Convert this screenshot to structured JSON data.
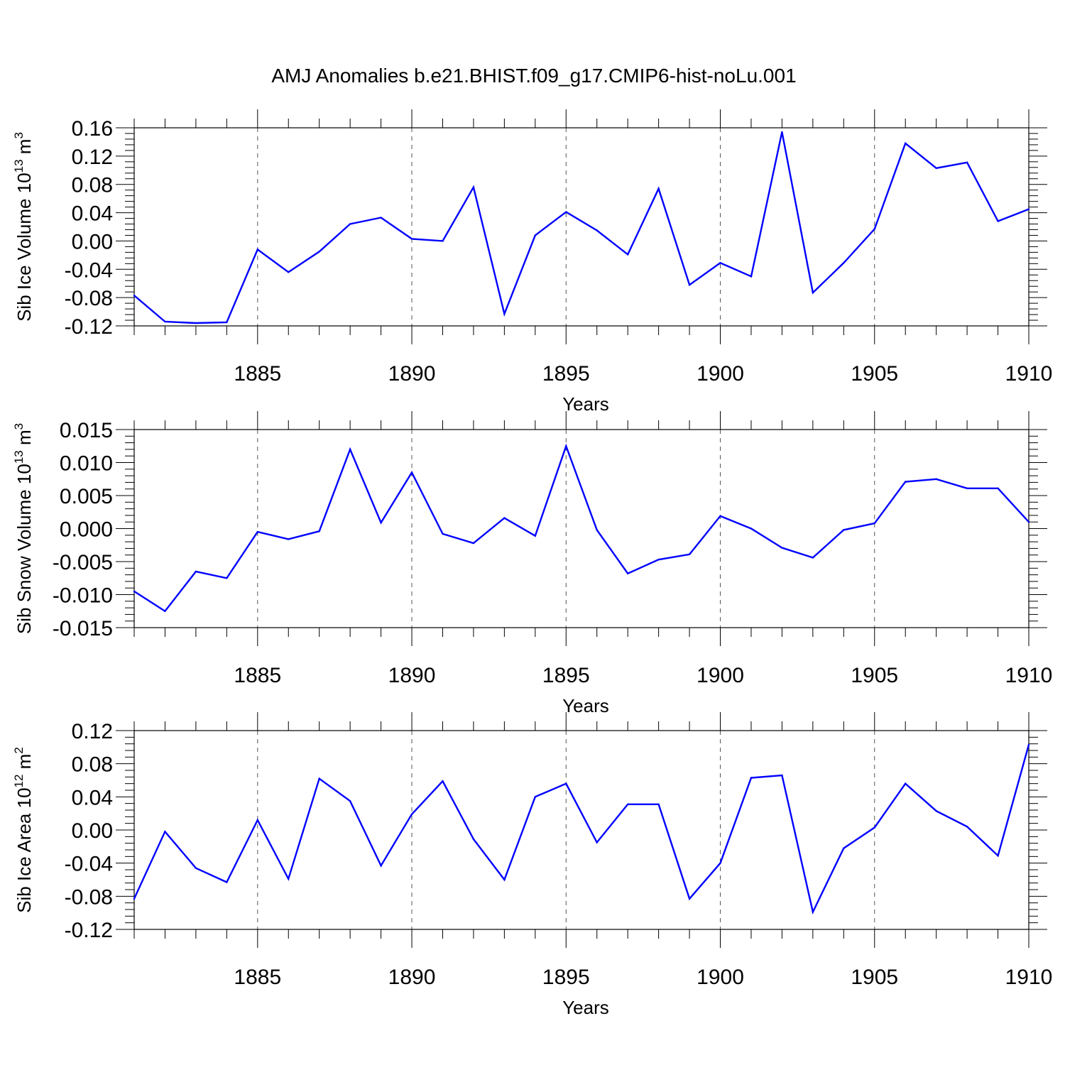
{
  "figure_title": "AMJ Anomalies b.e21.BHIST.f09_g17.CMIP6-hist-noLu.001",
  "chart_data": [
    {
      "type": "line",
      "title": "",
      "xlabel": "Years",
      "ylabel_text": "Sib Ice Volume 10",
      "ylabel_exp": "13",
      "ylabel_unit": " m",
      "ylabel_unit_exp": "3",
      "x": [
        1881,
        1882,
        1883,
        1884,
        1885,
        1886,
        1887,
        1888,
        1889,
        1890,
        1891,
        1892,
        1893,
        1894,
        1895,
        1896,
        1897,
        1898,
        1899,
        1900,
        1901,
        1902,
        1903,
        1904,
        1905,
        1906,
        1907,
        1908,
        1909,
        1910
      ],
      "values": [
        -0.077,
        -0.114,
        -0.116,
        -0.115,
        -0.012,
        -0.044,
        -0.015,
        0.024,
        0.033,
        0.003,
        0.0,
        0.076,
        -0.103,
        0.008,
        0.041,
        0.015,
        -0.019,
        0.074,
        -0.062,
        -0.031,
        -0.05,
        0.154,
        -0.073,
        -0.031,
        0.017,
        0.138,
        0.103,
        0.111,
        0.028,
        0.045
      ],
      "xlim": [
        1881,
        1910
      ],
      "ylim": [
        -0.12,
        0.16
      ],
      "yticks": [
        -0.12,
        -0.08,
        -0.04,
        0.0,
        0.04,
        0.08,
        0.12,
        0.16
      ],
      "ytick_labels": [
        "-0.12",
        "-0.08",
        "-0.04",
        "0.00",
        "0.04",
        "0.08",
        "0.12",
        "0.16"
      ],
      "xticks": [
        1885,
        1890,
        1895,
        1900,
        1905,
        1910
      ],
      "xtick_labels": [
        "1885",
        "1890",
        "1895",
        "1900",
        "1905",
        "1910"
      ],
      "grid": "vertical-dashed",
      "line_color": "#0000ff"
    },
    {
      "type": "line",
      "title": "",
      "xlabel": "Years",
      "ylabel_text": "Sib Snow Volume 10",
      "ylabel_exp": "13",
      "ylabel_unit": " m",
      "ylabel_unit_exp": "3",
      "x": [
        1881,
        1882,
        1883,
        1884,
        1885,
        1886,
        1887,
        1888,
        1889,
        1890,
        1891,
        1892,
        1893,
        1894,
        1895,
        1896,
        1897,
        1898,
        1899,
        1900,
        1901,
        1902,
        1903,
        1904,
        1905,
        1906,
        1907,
        1908,
        1909,
        1910
      ],
      "values": [
        -0.0095,
        -0.0125,
        -0.0065,
        -0.0075,
        -0.0005,
        -0.0016,
        -0.0004,
        0.012,
        0.0009,
        0.0085,
        -0.0008,
        -0.0022,
        0.0016,
        -0.0011,
        0.0125,
        -0.0002,
        -0.0068,
        -0.0047,
        -0.0039,
        0.0019,
        0.0,
        -0.0029,
        -0.0044,
        -0.0002,
        0.0008,
        0.0071,
        0.0075,
        0.0061,
        0.0061,
        0.001
      ],
      "xlim": [
        1881,
        1910
      ],
      "ylim": [
        -0.015,
        0.015
      ],
      "yticks": [
        -0.015,
        -0.01,
        -0.005,
        0.0,
        0.005,
        0.01,
        0.015
      ],
      "ytick_labels": [
        "-0.015",
        "-0.010",
        "-0.005",
        "0.000",
        "0.005",
        "0.010",
        "0.015"
      ],
      "xticks": [
        1885,
        1890,
        1895,
        1900,
        1905,
        1910
      ],
      "xtick_labels": [
        "1885",
        "1890",
        "1895",
        "1900",
        "1905",
        "1910"
      ],
      "grid": "vertical-dashed",
      "line_color": "#0000ff"
    },
    {
      "type": "line",
      "title": "",
      "xlabel": "Years",
      "ylabel_text": "Sib Ice Area 10",
      "ylabel_exp": "12",
      "ylabel_unit": " m",
      "ylabel_unit_exp": "2",
      "x": [
        1881,
        1882,
        1883,
        1884,
        1885,
        1886,
        1887,
        1888,
        1889,
        1890,
        1891,
        1892,
        1893,
        1894,
        1895,
        1896,
        1897,
        1898,
        1899,
        1900,
        1901,
        1902,
        1903,
        1904,
        1905,
        1906,
        1907,
        1908,
        1909,
        1910
      ],
      "values": [
        -0.083,
        -0.002,
        -0.046,
        -0.063,
        0.012,
        -0.059,
        0.062,
        0.035,
        -0.043,
        0.019,
        0.059,
        -0.011,
        -0.06,
        0.04,
        0.056,
        -0.015,
        0.031,
        0.031,
        -0.083,
        -0.04,
        0.063,
        0.066,
        -0.099,
        -0.022,
        0.003,
        0.056,
        0.023,
        0.004,
        -0.031,
        0.103
      ],
      "xlim": [
        1881,
        1910
      ],
      "ylim": [
        -0.12,
        0.12
      ],
      "yticks": [
        -0.12,
        -0.08,
        -0.04,
        0.0,
        0.04,
        0.08,
        0.12
      ],
      "ytick_labels": [
        "-0.12",
        "-0.08",
        "-0.04",
        "0.00",
        "0.04",
        "0.08",
        "0.12"
      ],
      "xticks": [
        1885,
        1890,
        1895,
        1900,
        1905,
        1910
      ],
      "xtick_labels": [
        "1885",
        "1890",
        "1895",
        "1900",
        "1905",
        "1910"
      ],
      "grid": "vertical-dashed",
      "line_color": "#0000ff"
    }
  ]
}
